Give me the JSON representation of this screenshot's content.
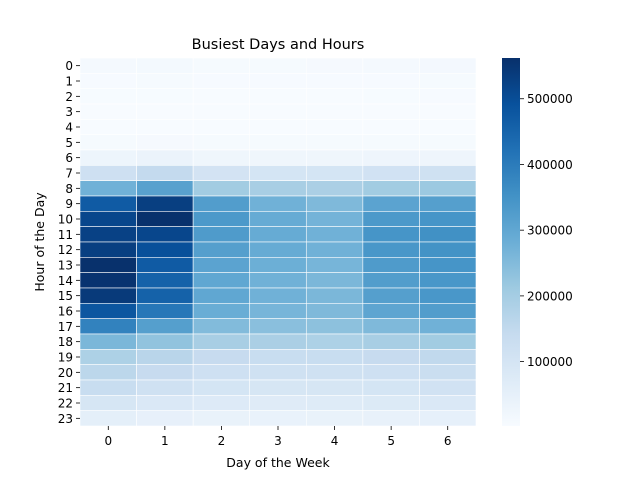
{
  "chart_data": {
    "type": "heatmap",
    "title": "Busiest Days and Hours",
    "xlabel": "Day of the Week",
    "ylabel": "Hour of the Day",
    "x_categories": [
      "0",
      "1",
      "2",
      "3",
      "4",
      "5",
      "6"
    ],
    "y_categories": [
      "0",
      "1",
      "2",
      "3",
      "4",
      "5",
      "6",
      "7",
      "8",
      "9",
      "10",
      "11",
      "12",
      "13",
      "14",
      "15",
      "16",
      "17",
      "18",
      "19",
      "20",
      "21",
      "22",
      "23"
    ],
    "values": [
      [
        10000,
        12000,
        8000,
        8000,
        9000,
        11000,
        13000
      ],
      [
        6000,
        7000,
        5000,
        5000,
        5000,
        6000,
        8000
      ],
      [
        4000,
        4000,
        3000,
        3000,
        3000,
        4000,
        5000
      ],
      [
        3000,
        3000,
        2000,
        2000,
        2000,
        3000,
        3000
      ],
      [
        3000,
        3000,
        2000,
        2000,
        2000,
        3000,
        3000
      ],
      [
        8000,
        9000,
        7000,
        7000,
        7000,
        8000,
        8000
      ],
      [
        30000,
        35000,
        25000,
        25000,
        25000,
        27000,
        28000
      ],
      [
        120000,
        145000,
        105000,
        100000,
        100000,
        110000,
        115000
      ],
      [
        275000,
        315000,
        205000,
        195000,
        190000,
        205000,
        215000
      ],
      [
        470000,
        530000,
        325000,
        275000,
        255000,
        310000,
        320000
      ],
      [
        515000,
        560000,
        335000,
        290000,
        270000,
        335000,
        345000
      ],
      [
        525000,
        515000,
        330000,
        290000,
        275000,
        345000,
        355000
      ],
      [
        530000,
        495000,
        320000,
        290000,
        275000,
        340000,
        350000
      ],
      [
        560000,
        470000,
        310000,
        280000,
        265000,
        330000,
        345000
      ],
      [
        555000,
        455000,
        300000,
        275000,
        260000,
        325000,
        340000
      ],
      [
        540000,
        455000,
        300000,
        275000,
        260000,
        320000,
        340000
      ],
      [
        480000,
        410000,
        285000,
        265000,
        255000,
        305000,
        325000
      ],
      [
        385000,
        320000,
        250000,
        240000,
        235000,
        255000,
        275000
      ],
      [
        260000,
        230000,
        195000,
        190000,
        185000,
        195000,
        205000
      ],
      [
        185000,
        165000,
        140000,
        135000,
        135000,
        140000,
        150000
      ],
      [
        160000,
        140000,
        120000,
        115000,
        115000,
        120000,
        130000
      ],
      [
        135000,
        115000,
        100000,
        95000,
        95000,
        100000,
        110000
      ],
      [
        95000,
        85000,
        75000,
        70000,
        72000,
        78000,
        85000
      ],
      [
        55000,
        48000,
        42000,
        40000,
        42000,
        45000,
        50000
      ]
    ],
    "vmin": 2000,
    "vmax": 562000,
    "colormap": "Blues",
    "colorbar_ticks": [
      100000,
      200000,
      300000,
      400000,
      500000
    ],
    "colorbar_tick_labels": [
      "100000",
      "200000",
      "300000",
      "400000",
      "500000"
    ],
    "cell_border_color": "#ffffff"
  }
}
